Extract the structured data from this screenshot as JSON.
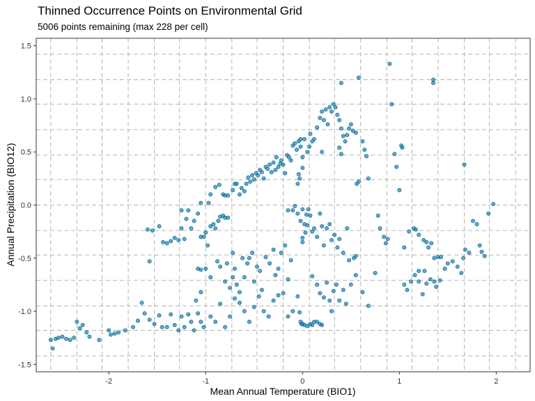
{
  "chart_data": {
    "type": "scatter",
    "title": "Thinned Occurrence Points on Environmental Grid",
    "subtitle": "5006 points remaining (max 228 per cell)",
    "xlabel": "Mean Annual Temperature (BIO1)",
    "ylabel": "Annual Precipitation (BIO12)",
    "xlim": [
      -2.75,
      2.35
    ],
    "ylim": [
      -1.57,
      1.57
    ],
    "x_ticks": [
      -2,
      -1,
      0,
      1,
      2
    ],
    "x_tick_labels": [
      "-2",
      "-1",
      "0",
      "1",
      "2"
    ],
    "y_ticks": [
      -1.5,
      -1.0,
      -0.5,
      0.0,
      0.5,
      1.0,
      1.5
    ],
    "y_tick_labels": [
      "-1.5",
      "-1.0",
      "-0.5",
      "0.0",
      "0.5",
      "1.0",
      "1.5"
    ],
    "x_gridlines": [
      -2.6,
      -2.33,
      -2.07,
      -1.8,
      -1.53,
      -1.27,
      -1.0,
      -0.73,
      -0.47,
      -0.2,
      0.07,
      0.33,
      0.6,
      0.87,
      1.13,
      1.4,
      1.67,
      1.93,
      2.2
    ],
    "y_gridlines": [
      -1.42,
      -1.18,
      -0.95,
      -0.71,
      -0.47,
      -0.24,
      0.0,
      0.24,
      0.47,
      0.71,
      0.95,
      1.18,
      1.42
    ],
    "grid": true,
    "point_color": "#1a87b8",
    "point_edge_color": "#0b5f8a",
    "point_opacity": 0.7,
    "points": [
      [
        -2.6,
        -1.27
      ],
      [
        -2.58,
        -1.35
      ],
      [
        -2.55,
        -1.26
      ],
      [
        -2.52,
        -1.25
      ],
      [
        -2.48,
        -1.24
      ],
      [
        -2.44,
        -1.26
      ],
      [
        -2.4,
        -1.27
      ],
      [
        -2.36,
        -1.25
      ],
      [
        -2.33,
        -1.1
      ],
      [
        -2.3,
        -1.16
      ],
      [
        -2.27,
        -1.13
      ],
      [
        -2.23,
        -1.2
      ],
      [
        -2.2,
        -1.24
      ],
      [
        -2.1,
        -1.27
      ],
      [
        -2.0,
        -1.18
      ],
      [
        -1.98,
        -1.22
      ],
      [
        -1.94,
        -1.21
      ],
      [
        -1.9,
        -1.2
      ],
      [
        -1.83,
        -1.18
      ],
      [
        -1.75,
        -1.15
      ],
      [
        -1.7,
        -1.09
      ],
      [
        -1.66,
        -0.92
      ],
      [
        -1.63,
        -1.02
      ],
      [
        -1.58,
        -1.08
      ],
      [
        -1.53,
        -1.12
      ],
      [
        -1.48,
        -1.04
      ],
      [
        -1.45,
        -1.15
      ],
      [
        -1.4,
        -1.15
      ],
      [
        -1.36,
        -1.03
      ],
      [
        -1.32,
        -1.13
      ],
      [
        -1.28,
        -1.18
      ],
      [
        -1.25,
        -1.05
      ],
      [
        -1.22,
        -1.15
      ],
      [
        -1.18,
        -1.03
      ],
      [
        -1.15,
        -1.1
      ],
      [
        -1.12,
        -1.18
      ],
      [
        -1.08,
        -1.02
      ],
      [
        -1.05,
        -1.1
      ],
      [
        -1.02,
        -1.15
      ],
      [
        -1.58,
        -0.53
      ],
      [
        -1.6,
        -0.23
      ],
      [
        -1.55,
        -0.24
      ],
      [
        -1.48,
        -0.2
      ],
      [
        -1.44,
        -0.35
      ],
      [
        -1.4,
        -0.36
      ],
      [
        -1.36,
        -0.34
      ],
      [
        -1.32,
        -0.31
      ],
      [
        -1.28,
        -0.33
      ],
      [
        -1.25,
        -0.22
      ],
      [
        -1.22,
        -0.32
      ],
      [
        -1.2,
        -0.13
      ],
      [
        -1.15,
        -0.22
      ],
      [
        -1.12,
        -0.15
      ],
      [
        -1.08,
        -0.08
      ],
      [
        -1.05,
        -0.3
      ],
      [
        -1.02,
        -0.3
      ],
      [
        -1.0,
        -0.26
      ],
      [
        -0.98,
        -0.38
      ],
      [
        -0.95,
        -0.2
      ],
      [
        -0.92,
        -0.18
      ],
      [
        -0.9,
        -0.22
      ],
      [
        -0.87,
        -0.15
      ],
      [
        -0.85,
        -0.11
      ],
      [
        -0.82,
        -0.1
      ],
      [
        -0.8,
        -0.12
      ],
      [
        -0.77,
        -0.12
      ],
      [
        -1.25,
        -0.05
      ],
      [
        -1.18,
        -0.05
      ],
      [
        -1.05,
        0.02
      ],
      [
        -0.97,
        0.02
      ],
      [
        -0.95,
        0.1
      ],
      [
        -0.9,
        0.17
      ],
      [
        -0.86,
        0.19
      ],
      [
        -0.82,
        0.1
      ],
      [
        -0.8,
        0.09
      ],
      [
        -0.77,
        0.09
      ],
      [
        -0.72,
        0.14
      ],
      [
        -0.7,
        0.2
      ],
      [
        -0.68,
        0.2
      ],
      [
        -0.65,
        0.1
      ],
      [
        -0.63,
        0.16
      ],
      [
        -0.6,
        0.13
      ],
      [
        -0.58,
        0.2
      ],
      [
        -0.56,
        0.26
      ],
      [
        -0.54,
        0.22
      ],
      [
        -0.52,
        0.28
      ],
      [
        -0.5,
        0.24
      ],
      [
        -0.48,
        0.3
      ],
      [
        -0.46,
        0.28
      ],
      [
        -0.44,
        0.33
      ],
      [
        -0.42,
        0.31
      ],
      [
        -0.4,
        0.25
      ],
      [
        -0.38,
        0.36
      ],
      [
        -0.36,
        0.34
      ],
      [
        -0.34,
        0.38
      ],
      [
        -0.32,
        0.31
      ],
      [
        -0.3,
        0.4
      ],
      [
        -0.28,
        0.33
      ],
      [
        -0.27,
        0.45
      ],
      [
        -0.25,
        0.36
      ],
      [
        -0.23,
        0.39
      ],
      [
        -0.22,
        0.42
      ],
      [
        -0.2,
        0.38
      ],
      [
        -0.18,
        0.3
      ],
      [
        -0.16,
        0.47
      ],
      [
        -0.14,
        0.45
      ],
      [
        -0.12,
        0.42
      ],
      [
        -0.1,
        0.56
      ],
      [
        -0.08,
        0.58
      ],
      [
        -0.06,
        0.52
      ],
      [
        -0.04,
        0.6
      ],
      [
        -0.02,
        0.55
      ],
      [
        0.0,
        0.45
      ],
      [
        0.02,
        0.62
      ],
      [
        0.05,
        0.5
      ],
      [
        0.07,
        0.55
      ],
      [
        0.08,
        0.67
      ],
      [
        0.1,
        0.6
      ],
      [
        0.12,
        0.62
      ],
      [
        0.15,
        0.73
      ],
      [
        0.18,
        0.82
      ],
      [
        0.2,
        0.88
      ],
      [
        0.22,
        0.8
      ],
      [
        0.24,
        0.9
      ],
      [
        0.26,
        0.76
      ],
      [
        0.28,
        0.92
      ],
      [
        0.3,
        0.88
      ],
      [
        0.32,
        0.95
      ],
      [
        0.34,
        0.92
      ],
      [
        0.36,
        0.85
      ],
      [
        0.38,
        0.8
      ],
      [
        0.4,
        0.72
      ],
      [
        0.42,
        0.65
      ],
      [
        0.44,
        0.6
      ],
      [
        0.46,
        0.66
      ],
      [
        0.48,
        0.72
      ],
      [
        0.5,
        0.76
      ],
      [
        0.52,
        0.7
      ],
      [
        0.55,
        0.68
      ],
      [
        0.58,
        1.2
      ],
      [
        0.62,
        0.6
      ],
      [
        0.64,
        0.52
      ],
      [
        0.66,
        0.46
      ],
      [
        0.68,
        0.25
      ],
      [
        0.56,
        0.2
      ],
      [
        0.58,
        0.22
      ],
      [
        0.4,
        1.15
      ],
      [
        0.38,
        0.54
      ],
      [
        0.4,
        0.48
      ],
      [
        0.2,
        0.5
      ],
      [
        -0.02,
        0.62
      ],
      [
        -0.05,
        0.2
      ],
      [
        0.0,
        0.35
      ],
      [
        -0.03,
        0.25
      ],
      [
        -0.04,
        0.29
      ],
      [
        0.9,
        1.33
      ],
      [
        0.92,
        0.95
      ],
      [
        0.95,
        0.48
      ],
      [
        0.97,
        0.36
      ],
      [
        1.0,
        0.14
      ],
      [
        1.02,
        0.56
      ],
      [
        1.03,
        0.54
      ],
      [
        1.35,
        1.15
      ],
      [
        1.35,
        1.18
      ],
      [
        1.67,
        0.38
      ],
      [
        1.97,
        0.01
      ],
      [
        -0.15,
        -0.05
      ],
      [
        -0.1,
        -0.05
      ],
      [
        -0.08,
        -0.01
      ],
      [
        -0.05,
        -0.08
      ],
      [
        -0.02,
        -0.15
      ],
      [
        0.0,
        -0.04
      ],
      [
        0.0,
        -0.31
      ],
      [
        0.0,
        -0.35
      ],
      [
        0.02,
        -0.18
      ],
      [
        0.03,
        -0.26
      ],
      [
        0.04,
        -0.09
      ],
      [
        0.05,
        -0.19
      ],
      [
        0.06,
        -0.04
      ],
      [
        0.08,
        -0.1
      ],
      [
        0.1,
        -0.25
      ],
      [
        0.12,
        -0.22
      ],
      [
        0.15,
        -0.3
      ],
      [
        0.18,
        -0.08
      ],
      [
        0.2,
        -0.2
      ],
      [
        0.22,
        -0.38
      ],
      [
        0.25,
        -0.22
      ],
      [
        0.28,
        -0.18
      ],
      [
        0.3,
        -0.33
      ],
      [
        0.33,
        -0.28
      ],
      [
        0.36,
        -0.4
      ],
      [
        0.38,
        -0.32
      ],
      [
        0.42,
        -0.45
      ],
      [
        0.46,
        -0.22
      ],
      [
        0.48,
        -0.52
      ],
      [
        0.53,
        -0.5
      ],
      [
        0.55,
        -0.48
      ],
      [
        -0.72,
        -0.45
      ],
      [
        -0.7,
        -0.6
      ],
      [
        -0.68,
        -0.75
      ],
      [
        -0.65,
        -0.82
      ],
      [
        -0.62,
        -0.5
      ],
      [
        -0.6,
        -0.68
      ],
      [
        -0.57,
        -0.55
      ],
      [
        -0.55,
        -0.5
      ],
      [
        -0.52,
        -0.45
      ],
      [
        -0.5,
        -0.72
      ],
      [
        -0.47,
        -0.58
      ],
      [
        -0.44,
        -0.62
      ],
      [
        -0.42,
        -0.8
      ],
      [
        -0.38,
        -0.49
      ],
      [
        -0.34,
        -0.55
      ],
      [
        -0.3,
        -0.42
      ],
      [
        -0.28,
        -0.66
      ],
      [
        -0.25,
        -0.6
      ],
      [
        -0.22,
        -0.45
      ],
      [
        -0.18,
        -0.38
      ],
      [
        -0.15,
        -0.7
      ],
      [
        -0.12,
        -0.52
      ],
      [
        -1.0,
        -0.6
      ],
      [
        -0.95,
        -0.68
      ],
      [
        -1.05,
        -0.61
      ],
      [
        -1.08,
        -0.6
      ],
      [
        -0.88,
        -0.53
      ],
      [
        -0.85,
        -0.58
      ],
      [
        -0.8,
        -0.72
      ],
      [
        -0.78,
        -0.55
      ],
      [
        -0.75,
        -0.78
      ],
      [
        -0.72,
        -0.68
      ],
      [
        -1.05,
        -0.82
      ],
      [
        -1.1,
        -0.9
      ],
      [
        -0.95,
        -1.05
      ],
      [
        -0.9,
        -1.1
      ],
      [
        -0.85,
        -0.93
      ],
      [
        -0.8,
        -1.15
      ],
      [
        -0.75,
        -1.05
      ],
      [
        -0.7,
        -0.88
      ],
      [
        -0.65,
        -0.92
      ],
      [
        -0.6,
        -1.0
      ],
      [
        -0.55,
        -1.1
      ],
      [
        -0.5,
        -0.96
      ],
      [
        -0.45,
        -0.86
      ],
      [
        -0.4,
        -1.0
      ],
      [
        -0.35,
        -1.05
      ],
      [
        -0.3,
        -0.9
      ],
      [
        -0.25,
        -0.85
      ],
      [
        -0.2,
        -0.83
      ],
      [
        -0.15,
        -1.05
      ],
      [
        -0.1,
        -1.0
      ],
      [
        -0.05,
        -0.86
      ],
      [
        -0.03,
        -1.01
      ],
      [
        -0.02,
        -1.1
      ],
      [
        -0.01,
        -1.12
      ],
      [
        0.0,
        -1.12
      ],
      [
        0.02,
        -1.13
      ],
      [
        0.05,
        -1.14
      ],
      [
        0.08,
        -1.12
      ],
      [
        0.1,
        -1.13
      ],
      [
        0.12,
        -1.1
      ],
      [
        0.15,
        -1.1
      ],
      [
        0.18,
        -1.12
      ],
      [
        0.2,
        -1.13
      ],
      [
        0.1,
        -0.67
      ],
      [
        0.15,
        -0.75
      ],
      [
        0.18,
        -0.83
      ],
      [
        0.22,
        -0.87
      ],
      [
        0.25,
        -0.73
      ],
      [
        0.28,
        -0.9
      ],
      [
        0.3,
        -1.0
      ],
      [
        0.32,
        -0.81
      ],
      [
        0.35,
        -0.75
      ],
      [
        0.38,
        -0.9
      ],
      [
        0.42,
        -0.8
      ],
      [
        0.45,
        -0.93
      ],
      [
        0.5,
        -0.75
      ],
      [
        0.55,
        -0.66
      ],
      [
        0.62,
        -0.82
      ],
      [
        0.68,
        -0.95
      ],
      [
        0.75,
        -0.64
      ],
      [
        0.78,
        -0.1
      ],
      [
        0.8,
        -0.22
      ],
      [
        0.84,
        -0.3
      ],
      [
        0.86,
        -0.36
      ],
      [
        0.88,
        -0.32
      ],
      [
        1.05,
        -0.4
      ],
      [
        1.1,
        -0.25
      ],
      [
        1.15,
        -0.22
      ],
      [
        1.17,
        -0.23
      ],
      [
        1.2,
        -0.28
      ],
      [
        1.25,
        -0.33
      ],
      [
        1.28,
        -0.35
      ],
      [
        1.3,
        -0.4
      ],
      [
        1.33,
        -0.36
      ],
      [
        1.36,
        -0.5
      ],
      [
        1.4,
        -0.49
      ],
      [
        1.43,
        -0.49
      ],
      [
        1.47,
        -0.6
      ],
      [
        1.5,
        -0.55
      ],
      [
        1.55,
        -0.53
      ],
      [
        1.6,
        -0.58
      ],
      [
        1.64,
        -0.64
      ],
      [
        1.66,
        -0.5
      ],
      [
        1.68,
        -0.42
      ],
      [
        1.72,
        -0.45
      ],
      [
        1.76,
        -0.15
      ],
      [
        1.8,
        -0.18
      ],
      [
        1.83,
        -0.38
      ],
      [
        1.85,
        -0.44
      ],
      [
        1.88,
        -0.48
      ],
      [
        1.92,
        -0.08
      ],
      [
        1.05,
        -0.75
      ],
      [
        1.08,
        -0.8
      ],
      [
        1.12,
        -0.72
      ],
      [
        1.16,
        -0.66
      ],
      [
        1.2,
        -0.62
      ],
      [
        1.24,
        -0.84
      ],
      [
        1.28,
        -0.74
      ],
      [
        1.32,
        -0.7
      ],
      [
        1.36,
        -0.72
      ],
      [
        1.38,
        -0.77
      ],
      [
        1.42,
        -0.71
      ],
      [
        1.2,
        -0.72
      ],
      [
        1.26,
        -0.62
      ]
    ]
  }
}
